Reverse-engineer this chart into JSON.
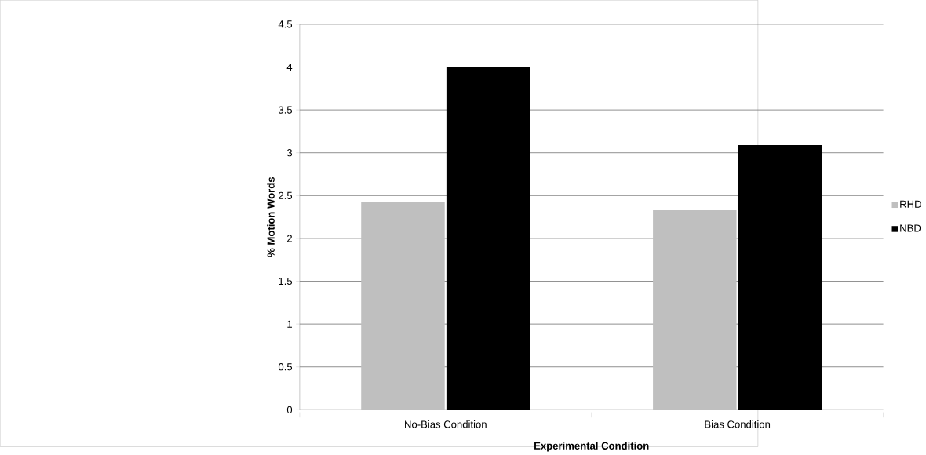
{
  "chart_data": {
    "type": "bar",
    "xlabel": "Experimental Condition",
    "ylabel": "% Motion Words",
    "categories": [
      "No-Bias Condition",
      "Bias Condition"
    ],
    "series": [
      {
        "name": "RHD",
        "color": "#bfbfbf",
        "values": [
          2.42,
          2.33
        ]
      },
      {
        "name": "NBD",
        "color": "#000000",
        "values": [
          4.0,
          3.09
        ]
      }
    ],
    "ylim": [
      0,
      4.5
    ],
    "yticks": [
      0,
      0.5,
      1,
      1.5,
      2,
      2.5,
      3,
      3.5,
      4,
      4.5
    ],
    "grid": "y",
    "legend": "right"
  }
}
